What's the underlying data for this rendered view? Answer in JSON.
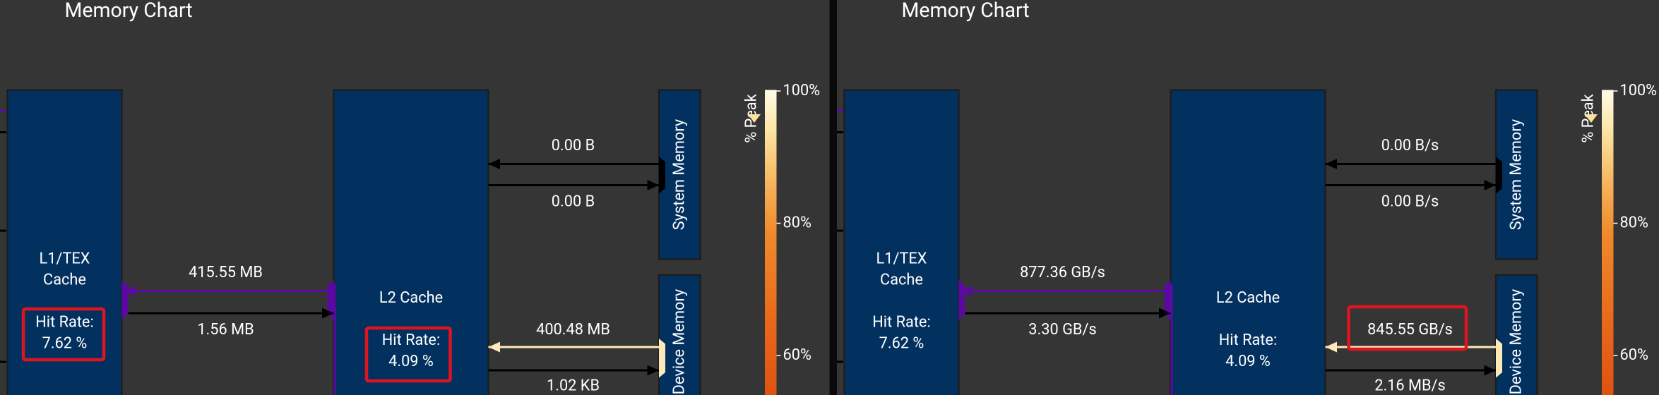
{
  "panels": [
    {
      "title": "Memory Chart",
      "l1": {
        "label_line1": "L1/TEX",
        "label_line2": "Cache",
        "hit_rate_label": "Hit Rate:",
        "hit_rate": "7.62 %"
      },
      "l2": {
        "label": "L2 Cache",
        "hit_rate_label": "Hit Rate:",
        "hit_rate": "4.09 %"
      },
      "l1_l2_up": "415.55 MB",
      "l1_l2_down": "1.56 MB",
      "sys_in": "0.00 B",
      "sys_out": "0.00 B",
      "dev_in": "400.48 MB",
      "dev_out": "1.02 KB",
      "system_memory": "System Memory",
      "device_memory": "Device Memory",
      "legend": {
        "title": "% Peak",
        "ticks": [
          "100%",
          "80%",
          "60%"
        ]
      }
    },
    {
      "title": "Memory Chart",
      "l1": {
        "label_line1": "L1/TEX",
        "label_line2": "Cache",
        "hit_rate_label": "Hit Rate:",
        "hit_rate": "7.62 %"
      },
      "l2": {
        "label": "L2 Cache",
        "hit_rate_label": "Hit Rate:",
        "hit_rate": "4.09 %"
      },
      "l1_l2_up": "877.36 GB/s",
      "l1_l2_down": "3.30 GB/s",
      "sys_in": "0.00 B/s",
      "sys_out": "0.00 B/s",
      "dev_in": "845.55 GB/s",
      "dev_out": "2.16 MB/s",
      "system_memory": "System Memory",
      "device_memory": "Device Memory",
      "legend": {
        "title": "% Peak",
        "ticks": [
          "100%",
          "80%",
          "60%"
        ]
      }
    }
  ]
}
